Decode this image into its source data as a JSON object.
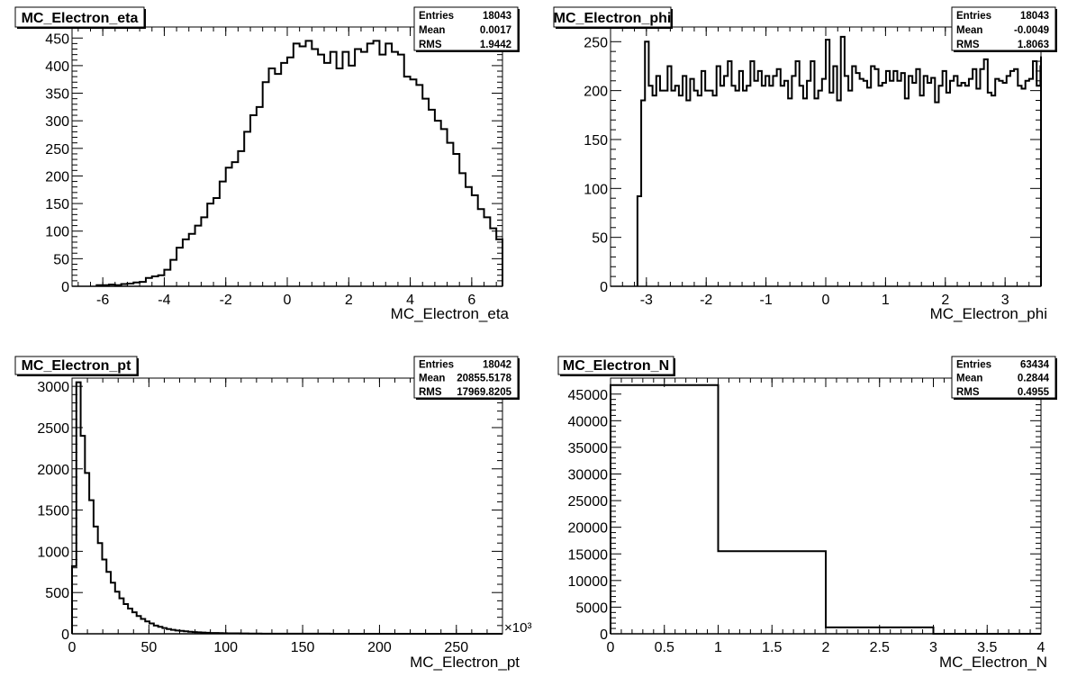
{
  "chart_data": [
    {
      "type": "bar",
      "title": "MC_Electron_eta",
      "xlabel": "MC_Electron_eta",
      "ylabel": "",
      "xlim": [
        -7,
        7
      ],
      "ylim": [
        0,
        470
      ],
      "x_ticks": [
        -6,
        -4,
        -2,
        0,
        2,
        4,
        6
      ],
      "y_ticks": [
        0,
        50,
        100,
        150,
        200,
        250,
        300,
        350,
        400,
        450
      ],
      "x_ticklabels": [
        "-6",
        "-4",
        "-2",
        "0",
        "2",
        "4",
        "6"
      ],
      "y_ticklabels": [
        "0",
        "50",
        "100",
        "150",
        "200",
        "250",
        "300",
        "350",
        "400",
        "450"
      ],
      "x_multiplier": "",
      "stats": [
        {
          "label": "Entries",
          "value": "18043"
        },
        {
          "label": "Mean",
          "value": "0.0017"
        },
        {
          "label": "RMS",
          "value": "1.9442"
        }
      ],
      "bins": {
        "edges_start": -6.2,
        "width": 0.2,
        "values": [
          2,
          2,
          3,
          2,
          4,
          5,
          7,
          8,
          15,
          18,
          20,
          30,
          48,
          70,
          85,
          95,
          110,
          125,
          150,
          160,
          190,
          215,
          225,
          245,
          280,
          310,
          325,
          370,
          395,
          385,
          405,
          415,
          440,
          435,
          445,
          430,
          420,
          405,
          425,
          395,
          425,
          400,
          430,
          425,
          440,
          445,
          420,
          440,
          425,
          420,
          380,
          375,
          365,
          340,
          320,
          300,
          285,
          260,
          240,
          205,
          180,
          165,
          140,
          125,
          105,
          85,
          75,
          55,
          48,
          35,
          30,
          18,
          12,
          8,
          6,
          4,
          3,
          3,
          2,
          2,
          2,
          2,
          2
        ]
      }
    },
    {
      "type": "bar",
      "title": "MC_Electron_phi",
      "xlabel": "MC_Electron_phi",
      "ylabel": "",
      "xlim": [
        -3.6,
        3.6
      ],
      "ylim": [
        0,
        265
      ],
      "x_ticks": [
        -3,
        -2,
        -1,
        0,
        1,
        2,
        3
      ],
      "y_ticks": [
        0,
        50,
        100,
        150,
        200,
        250
      ],
      "x_ticklabels": [
        "-3",
        "-2",
        "-1",
        "0",
        "1",
        "2",
        "3"
      ],
      "y_ticklabels": [
        "0",
        "50",
        "100",
        "150",
        "200",
        "250"
      ],
      "x_multiplier": "",
      "stats": [
        {
          "label": "Entries",
          "value": "18043"
        },
        {
          "label": "Mean",
          "value": "-0.0049"
        },
        {
          "label": "RMS",
          "value": "1.8063"
        }
      ],
      "bins": {
        "edges_start": -3.15,
        "width": 0.063,
        "values": [
          92,
          190,
          250,
          205,
          195,
          215,
          200,
          200,
          225,
          200,
          205,
          195,
          215,
          190,
          212,
          200,
          195,
          220,
          200,
          200,
          195,
          225,
          205,
          215,
          230,
          205,
          200,
          220,
          200,
          205,
          230,
          210,
          220,
          205,
          215,
          205,
          215,
          222,
          205,
          210,
          192,
          215,
          230,
          205,
          192,
          210,
          230,
          192,
          200,
          212,
          252,
          198,
          225,
          190,
          255,
          215,
          200,
          225,
          218,
          212,
          210,
          203,
          225,
          222,
          205,
          208,
          220,
          210,
          220,
          210,
          218,
          192,
          215,
          208,
          222,
          195,
          215,
          208,
          213,
          188,
          205,
          220,
          198,
          210,
          215,
          205,
          208,
          205,
          212,
          222,
          202,
          222,
          232,
          198,
          195,
          212,
          210,
          208,
          215,
          220,
          222,
          205,
          202,
          210,
          212,
          230,
          205,
          225,
          215,
          205,
          200,
          212,
          205,
          218,
          198,
          208,
          200,
          215,
          210,
          200,
          205,
          208,
          200,
          220,
          235,
          205,
          192,
          110
        ],
        "note_values_reduced": true
      }
    },
    {
      "type": "bar",
      "title": "MC_Electron_pt",
      "xlabel": "MC_Electron_pt",
      "ylabel": "",
      "xlim": [
        0,
        280
      ],
      "ylim": [
        0,
        3100
      ],
      "x_ticks": [
        0,
        50,
        100,
        150,
        200,
        250
      ],
      "y_ticks": [
        0,
        500,
        1000,
        1500,
        2000,
        2500,
        3000
      ],
      "x_ticklabels": [
        "0",
        "50",
        "100",
        "150",
        "200",
        "250"
      ],
      "y_ticklabels": [
        "0",
        "500",
        "1000",
        "1500",
        "2000",
        "2500",
        "3000"
      ],
      "x_multiplier": "×10³",
      "stats": [
        {
          "label": "Entries",
          "value": "18042"
        },
        {
          "label": "Mean",
          "value": "20855.5178"
        },
        {
          "label": "RMS",
          "value": "17969.8205"
        }
      ],
      "bins": {
        "edges_start": 0,
        "width": 2.8,
        "values": [
          820,
          3050,
          2400,
          1950,
          1620,
          1300,
          1100,
          900,
          750,
          620,
          510,
          430,
          360,
          305,
          260,
          215,
          180,
          150,
          125,
          100,
          85,
          70,
          58,
          48,
          40,
          35,
          30,
          25,
          20,
          18,
          15,
          12,
          10,
          9,
          8,
          7,
          6,
          5,
          5,
          4,
          4,
          3,
          3,
          3,
          2,
          2,
          2,
          2,
          1,
          1,
          1,
          1,
          1,
          1,
          1,
          1,
          1,
          1,
          1,
          1,
          0,
          0,
          0,
          0,
          0,
          0,
          0,
          0,
          0,
          0,
          0,
          0,
          0,
          0,
          0,
          0,
          0,
          0,
          0,
          0,
          0,
          0,
          0,
          0,
          0,
          0,
          0,
          0,
          0,
          0,
          0,
          0,
          0,
          0,
          0,
          0,
          0,
          0,
          0,
          0
        ]
      }
    },
    {
      "type": "bar",
      "title": "MC_Electron_N",
      "xlabel": "MC_Electron_N",
      "ylabel": "",
      "xlim": [
        0,
        4
      ],
      "ylim": [
        0,
        48000
      ],
      "x_ticks": [
        0,
        0.5,
        1,
        1.5,
        2,
        2.5,
        3,
        3.5,
        4
      ],
      "y_ticks": [
        0,
        5000,
        10000,
        15000,
        20000,
        25000,
        30000,
        35000,
        40000,
        45000
      ],
      "x_ticklabels": [
        "0",
        "0.5",
        "1",
        "1.5",
        "2",
        "2.5",
        "3",
        "3.5",
        "4"
      ],
      "y_ticklabels": [
        "0",
        "5000",
        "10000",
        "15000",
        "20000",
        "25000",
        "30000",
        "35000",
        "40000",
        "45000"
      ],
      "x_multiplier": "",
      "stats": [
        {
          "label": "Entries",
          "value": "63434"
        },
        {
          "label": "Mean",
          "value": "0.2844"
        },
        {
          "label": "RMS",
          "value": "0.4955"
        }
      ],
      "bins": {
        "edges_start": 0,
        "width": 1,
        "values": [
          46700,
          15500,
          1200,
          0
        ]
      }
    }
  ]
}
